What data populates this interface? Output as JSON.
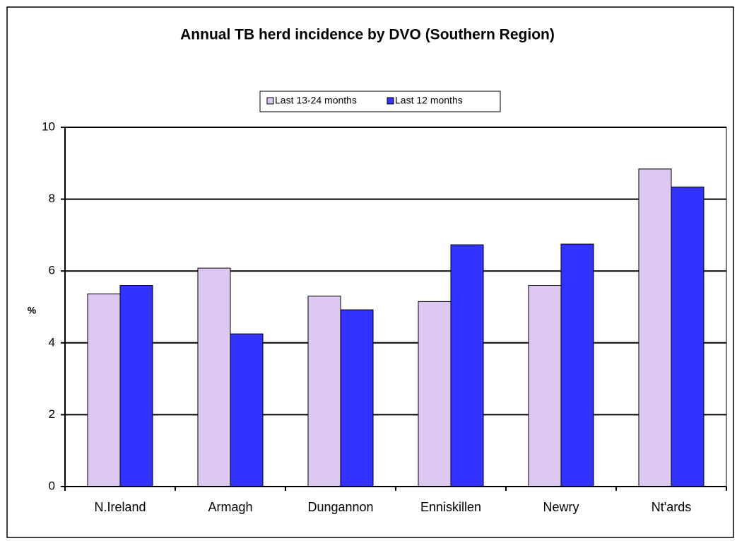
{
  "chart_data": {
    "type": "bar",
    "title": "Annual TB herd incidence by DVO (Southern Region)",
    "y_label": "%",
    "categories": [
      "N.Ireland",
      "Armagh",
      "Dungannon",
      "Enniskillen",
      "Newry",
      "Nt'ards"
    ],
    "series": [
      {
        "name": "Last 13-24 months",
        "color": "#dcc8f0",
        "values": [
          5.36,
          6.08,
          5.3,
          5.15,
          5.6,
          8.84
        ]
      },
      {
        "name": "Last 12 months",
        "color": "#3333ff",
        "values": [
          5.6,
          4.25,
          4.92,
          6.73,
          6.75,
          8.34
        ]
      }
    ],
    "ylim": [
      0,
      10
    ],
    "yticks": [
      0,
      2,
      4,
      6,
      8,
      10
    ],
    "grid": true,
    "legend": "top"
  }
}
